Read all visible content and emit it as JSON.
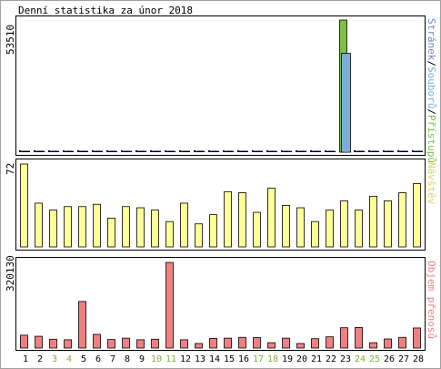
{
  "title": "Denní statistika za únor 2018",
  "colors": {
    "frame": "#000000",
    "accesses": "#7cc142",
    "files": "#7aaed9",
    "hits_pages": "#6e86c8",
    "visits": "#ffff99",
    "transfer": "#f08080",
    "weekend": "#80b040",
    "weekday": "#000000",
    "border_gray": "#a0a0a0"
  },
  "chart_data": [
    {
      "type": "bar",
      "panel": "requests",
      "title": "Denní statistika za únor 2018",
      "ylabel_right_parts": [
        {
          "text": "Stránek",
          "key": "pages"
        },
        {
          "text": "/",
          "key": "sep"
        },
        {
          "text": "Souborů",
          "key": "files"
        },
        {
          "text": "/",
          "key": "sep"
        },
        {
          "text": "Přístupů",
          "key": "hits"
        }
      ],
      "ymax_label": "53510",
      "ylim": [
        0,
        53510
      ],
      "categories": [
        "1",
        "2",
        "3",
        "4",
        "5",
        "6",
        "7",
        "8",
        "9",
        "10",
        "11",
        "12",
        "13",
        "14",
        "15",
        "16",
        "17",
        "18",
        "19",
        "20",
        "21",
        "22",
        "23",
        "24",
        "25",
        "26",
        "27",
        "28"
      ],
      "series": [
        {
          "name": "Přístupů",
          "values": [
            200,
            200,
            200,
            200,
            800,
            200,
            200,
            200,
            200,
            200,
            200,
            200,
            200,
            200,
            200,
            200,
            200,
            200,
            700,
            200,
            200,
            200,
            53510,
            200,
            200,
            200,
            700,
            600
          ]
        },
        {
          "name": "Souborů",
          "values": [
            150,
            150,
            150,
            150,
            500,
            150,
            150,
            150,
            150,
            150,
            150,
            150,
            150,
            150,
            150,
            150,
            150,
            150,
            450,
            150,
            150,
            150,
            40000,
            150,
            150,
            150,
            450,
            400
          ]
        },
        {
          "name": "Stránek",
          "values": [
            50,
            50,
            50,
            50,
            300,
            50,
            50,
            50,
            50,
            50,
            50,
            50,
            50,
            50,
            50,
            50,
            50,
            50,
            250,
            50,
            50,
            50,
            200,
            50,
            50,
            50,
            250,
            200
          ]
        }
      ]
    },
    {
      "type": "bar",
      "panel": "visits",
      "ylabel_right": "Návštěv",
      "ymax_label": "72",
      "ylim": [
        0,
        72
      ],
      "categories": [
        "1",
        "2",
        "3",
        "4",
        "5",
        "6",
        "7",
        "8",
        "9",
        "10",
        "11",
        "12",
        "13",
        "14",
        "15",
        "16",
        "17",
        "18",
        "19",
        "20",
        "21",
        "22",
        "23",
        "24",
        "25",
        "26",
        "27",
        "28"
      ],
      "series": [
        {
          "name": "Návštěv",
          "values": [
            72,
            38,
            32,
            35,
            35,
            37,
            25,
            35,
            34,
            32,
            22,
            38,
            20,
            28,
            48,
            47,
            30,
            51,
            36,
            34,
            22,
            32,
            40,
            32,
            44,
            40,
            47,
            55
          ]
        }
      ]
    },
    {
      "type": "bar",
      "panel": "transfer",
      "ylabel_right": "Objem přenosů",
      "ymax_label": "320130",
      "ylim": [
        0,
        320130
      ],
      "categories": [
        "1",
        "2",
        "3",
        "4",
        "5",
        "6",
        "7",
        "8",
        "9",
        "10",
        "11",
        "12",
        "13",
        "14",
        "15",
        "16",
        "17",
        "18",
        "19",
        "20",
        "21",
        "22",
        "23",
        "24",
        "25",
        "26",
        "27",
        "28"
      ],
      "series": [
        {
          "name": "Objem přenosů",
          "values": [
            48000,
            44000,
            33000,
            31000,
            174000,
            51000,
            32000,
            37000,
            31000,
            33000,
            320000,
            31000,
            17000,
            36000,
            37000,
            40000,
            39000,
            20000,
            37000,
            17000,
            35000,
            42000,
            76000,
            77000,
            20000,
            34000,
            40000,
            75000
          ]
        }
      ]
    }
  ],
  "weekend_days": [
    "3",
    "4",
    "10",
    "11",
    "17",
    "18",
    "24",
    "25"
  ]
}
